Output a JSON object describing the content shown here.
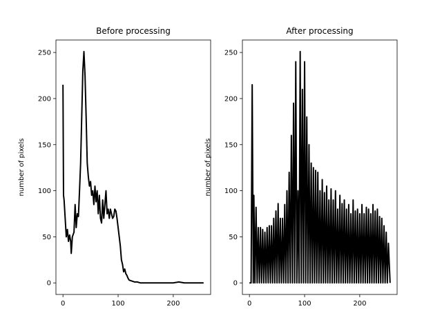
{
  "chart_data": [
    {
      "type": "line",
      "title": "Before processing",
      "y_label": "number of pixels",
      "color": "#000000",
      "x": [
        0,
        1,
        2,
        3,
        5,
        6,
        8,
        10,
        12,
        14,
        15,
        17,
        20,
        22,
        24,
        26,
        28,
        30,
        32,
        34,
        36,
        38,
        40,
        42,
        44,
        46,
        48,
        50,
        52,
        54,
        56,
        58,
        60,
        62,
        64,
        66,
        68,
        70,
        72,
        74,
        76,
        78,
        80,
        82,
        84,
        86,
        88,
        90,
        92,
        94,
        96,
        98,
        100,
        102,
        104,
        106,
        108,
        110,
        112,
        114,
        116,
        118,
        120,
        125,
        130,
        135,
        140,
        150,
        160,
        170,
        180,
        190,
        200,
        210,
        220,
        230,
        240,
        250,
        255
      ],
      "values": [
        215,
        95,
        90,
        80,
        60,
        50,
        58,
        45,
        52,
        45,
        32,
        50,
        55,
        85,
        60,
        75,
        72,
        100,
        130,
        180,
        230,
        251,
        225,
        180,
        130,
        115,
        105,
        110,
        95,
        100,
        85,
        105,
        88,
        100,
        75,
        95,
        70,
        65,
        90,
        70,
        85,
        100,
        75,
        80,
        70,
        80,
        75,
        70,
        72,
        80,
        78,
        70,
        60,
        50,
        40,
        25,
        20,
        12,
        15,
        10,
        8,
        5,
        3,
        2,
        1,
        1,
        0,
        0,
        0,
        0,
        0,
        0,
        0,
        1,
        0,
        0,
        0,
        0,
        0
      ],
      "xlim": [
        -12.75,
        267.75
      ],
      "ylim": [
        -12.55,
        263.55
      ],
      "xticks": [
        0,
        100,
        200
      ],
      "yticks": [
        0,
        50,
        100,
        150,
        200,
        250
      ]
    },
    {
      "type": "line",
      "title": "After processing",
      "y_label": "number of pixels",
      "color": "#000000",
      "x": [
        0,
        3,
        5,
        7,
        8,
        10,
        12,
        14,
        16,
        18,
        20,
        22,
        24,
        26,
        28,
        30,
        32,
        34,
        36,
        38,
        40,
        42,
        44,
        46,
        48,
        50,
        52,
        54,
        56,
        58,
        60,
        62,
        64,
        66,
        68,
        70,
        72,
        74,
        76,
        78,
        80,
        82,
        84,
        86,
        88,
        90,
        92,
        94,
        96,
        98,
        100,
        102,
        104,
        106,
        108,
        110,
        112,
        114,
        116,
        118,
        120,
        122,
        124,
        126,
        128,
        130,
        132,
        134,
        136,
        138,
        140,
        142,
        144,
        146,
        148,
        150,
        152,
        154,
        156,
        158,
        160,
        162,
        164,
        166,
        168,
        170,
        172,
        174,
        176,
        178,
        180,
        182,
        184,
        186,
        188,
        190,
        192,
        194,
        196,
        198,
        200,
        202,
        204,
        206,
        208,
        210,
        212,
        214,
        216,
        218,
        220,
        222,
        224,
        226,
        228,
        230,
        232,
        234,
        236,
        238,
        240,
        242,
        244,
        246,
        248,
        250,
        252,
        255
      ],
      "values": [
        0,
        0,
        215,
        0,
        95,
        0,
        82,
        0,
        60,
        0,
        60,
        0,
        58,
        0,
        55,
        0,
        60,
        0,
        62,
        0,
        62,
        0,
        70,
        0,
        78,
        0,
        86,
        0,
        70,
        0,
        70,
        0,
        85,
        0,
        100,
        0,
        120,
        0,
        160,
        0,
        195,
        0,
        240,
        0,
        100,
        0,
        251,
        0,
        210,
        0,
        240,
        0,
        180,
        0,
        150,
        0,
        130,
        0,
        125,
        0,
        122,
        0,
        120,
        0,
        100,
        0,
        112,
        0,
        98,
        0,
        105,
        0,
        90,
        0,
        102,
        0,
        90,
        0,
        100,
        0,
        80,
        0,
        95,
        0,
        86,
        0,
        90,
        0,
        80,
        0,
        85,
        0,
        75,
        0,
        90,
        0,
        78,
        0,
        80,
        0,
        75,
        0,
        85,
        0,
        75,
        0,
        82,
        0,
        80,
        0,
        75,
        0,
        85,
        0,
        78,
        0,
        80,
        0,
        72,
        0,
        70,
        0,
        62,
        0,
        55,
        0,
        43,
        0
      ],
      "xlim": [
        -12.75,
        267.75
      ],
      "ylim": [
        -12.55,
        263.55
      ],
      "xticks": [
        0,
        100,
        200
      ],
      "yticks": [
        0,
        50,
        100,
        150,
        200,
        250
      ]
    }
  ]
}
